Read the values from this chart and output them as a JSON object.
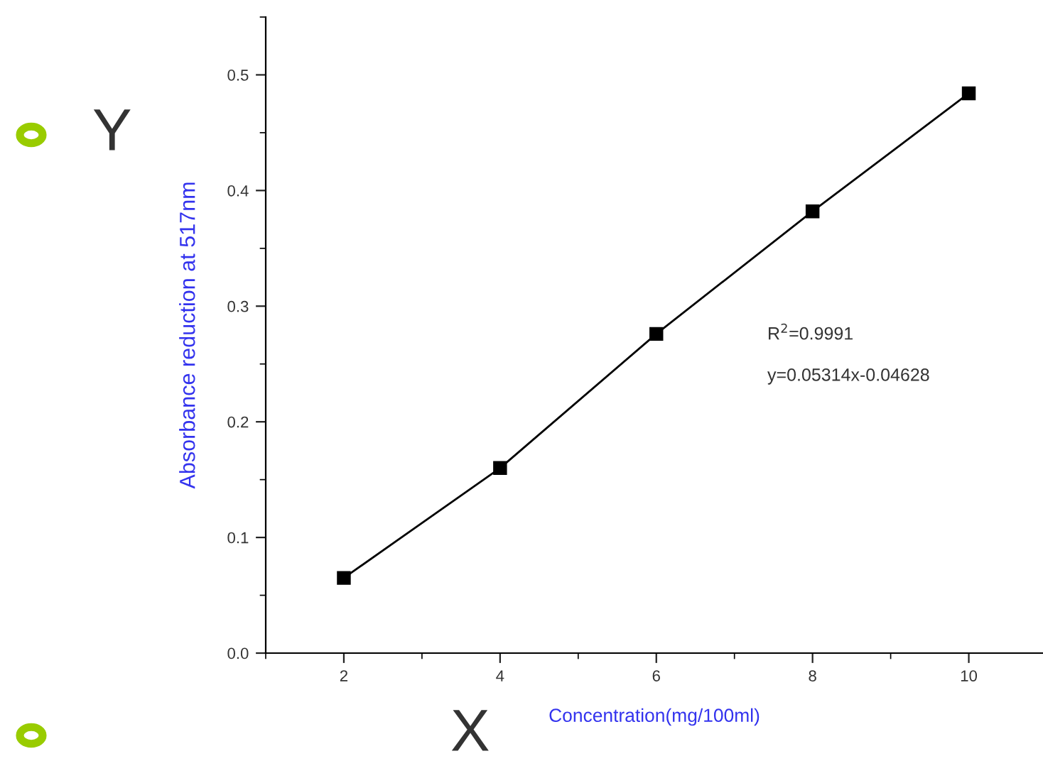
{
  "chart_data": {
    "type": "line",
    "xlabel": "Concentration(mg/100ml)",
    "ylabel": "Absorbance reduction at 517nm",
    "x": [
      2,
      4,
      6,
      8,
      10
    ],
    "series": [
      {
        "color": "#000000",
        "values": [
          0.065,
          0.16,
          0.276,
          0.382,
          0.484
        ]
      }
    ],
    "marker": "square",
    "line_style": "solid",
    "xlim": [
      1,
      10.95
    ],
    "xticks": [
      2,
      4,
      6,
      8,
      10
    ],
    "ylim": [
      0,
      0.55
    ],
    "yticks": [
      {
        "value": 0,
        "label": "0.0"
      },
      0.1,
      0.2,
      0.3,
      0.4,
      0.5
    ],
    "grid": false,
    "legend": false,
    "annotations": [
      "R$^{2}$=0.9991",
      "y=0.05314x-0.04628",
      "Y",
      "X"
    ]
  }
}
